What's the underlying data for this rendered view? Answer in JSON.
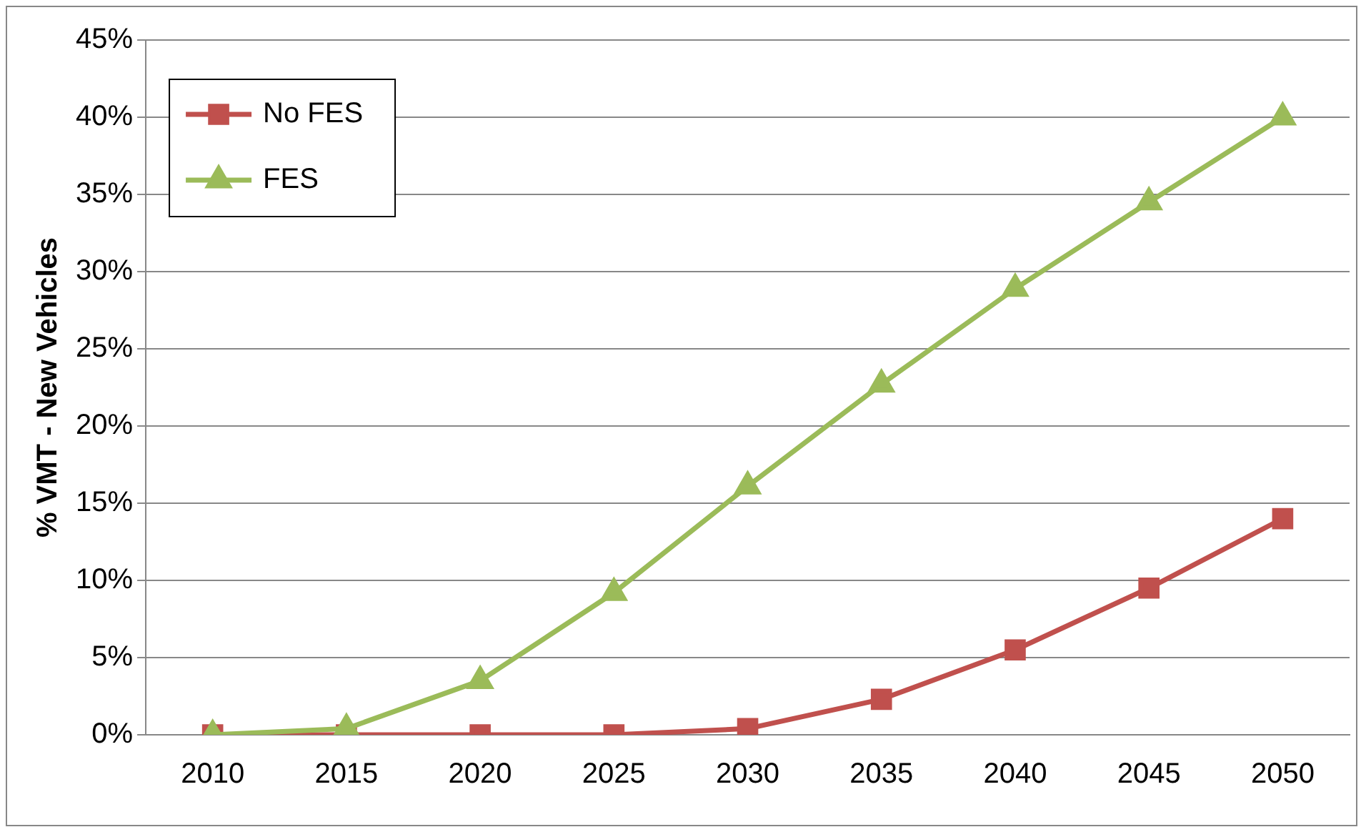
{
  "chart_data": {
    "type": "line",
    "ylabel": "% VMT - New Vehicles",
    "categories": [
      "2010",
      "2015",
      "2020",
      "2025",
      "2030",
      "2035",
      "2040",
      "2045",
      "2050"
    ],
    "series": [
      {
        "name": "No FES",
        "color": "#c0504d",
        "marker": "square",
        "values": [
          0,
          0,
          0,
          0,
          0.4,
          2.3,
          5.5,
          9.5,
          14
        ]
      },
      {
        "name": "FES",
        "color": "#9bbb59",
        "marker": "triangle",
        "values": [
          0,
          0.4,
          3.5,
          9.2,
          16.1,
          22.7,
          28.9,
          34.5,
          40
        ]
      }
    ],
    "ylim": [
      0,
      45
    ],
    "yticks": [
      {
        "value": 0,
        "label": "0%"
      },
      {
        "value": 5,
        "label": "5%"
      },
      {
        "value": 10,
        "label": "10%"
      },
      {
        "value": 15,
        "label": "15%"
      },
      {
        "value": 20,
        "label": "20%"
      },
      {
        "value": 25,
        "label": "25%"
      },
      {
        "value": 30,
        "label": "30%"
      },
      {
        "value": 35,
        "label": "35%"
      },
      {
        "value": 40,
        "label": "40%"
      },
      {
        "value": 45,
        "label": "45%"
      }
    ],
    "grid": "y",
    "legend": "top left",
    "line_style": "solid"
  }
}
